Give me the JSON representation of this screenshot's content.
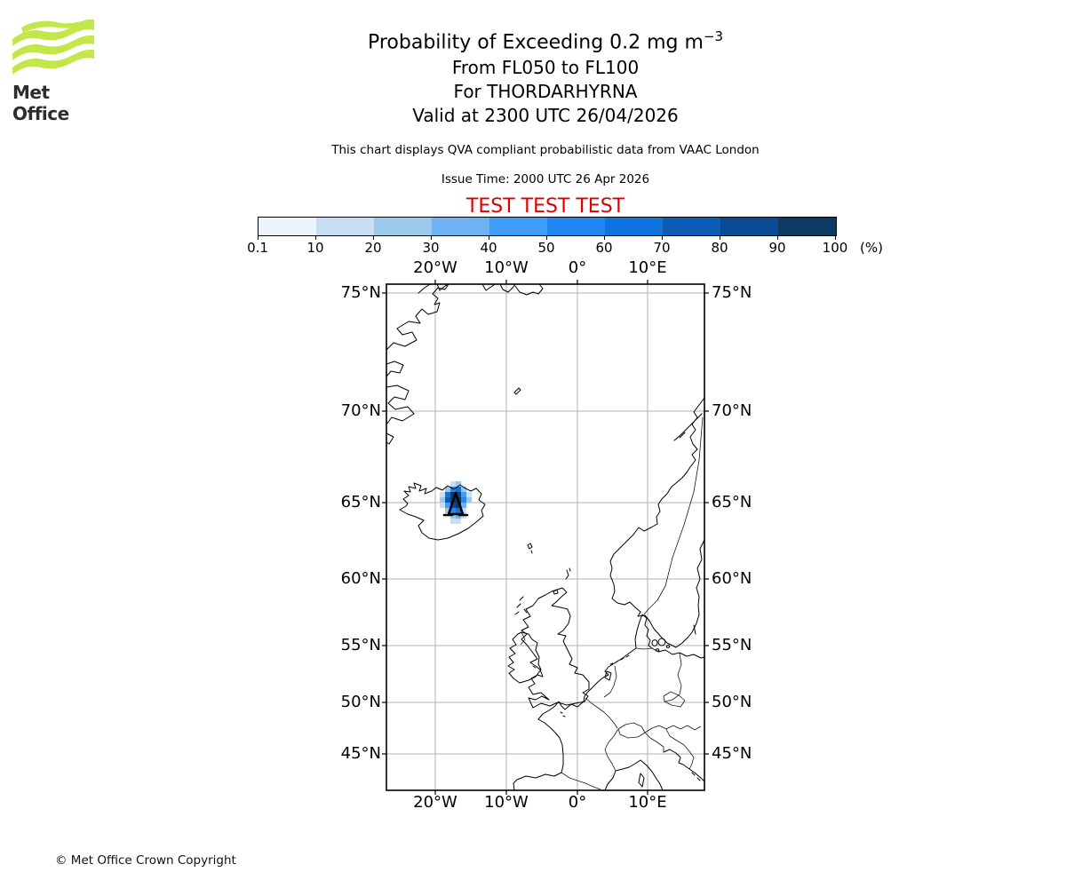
{
  "header": {
    "logo_text": "Met Office",
    "title_main": "Probability of Exceeding 0.2 mg m",
    "title_exponent": "−3",
    "subtitle_flight_levels": "From FL050 to FL100",
    "subtitle_volcano": "For THORDARHYRNA",
    "subtitle_valid": "Valid at 2300 UTC 26/04/2026",
    "description": "This chart displays QVA compliant probabilistic data from VAAC London",
    "issue_time": "Issue Time: 2000 UTC 26 Apr 2026",
    "test_banner": "TEST TEST TEST",
    "test_color": "#dd0000"
  },
  "colorbar": {
    "tick_labels": [
      "0.1",
      "10",
      "20",
      "30",
      "40",
      "50",
      "60",
      "70",
      "80",
      "90",
      "100"
    ],
    "unit": "(%)",
    "colors": [
      "#ebf3fb",
      "#c9def4",
      "#9cc8ec",
      "#6db3f4",
      "#3f9cf8",
      "#2288f0",
      "#1173dc",
      "#0b5cb4",
      "#0a4a94",
      "#0d3a63"
    ]
  },
  "map_axes": {
    "lon_labels": [
      "20°W",
      "10°W",
      "0°",
      "10°E"
    ],
    "lat_labels": [
      "75°N",
      "70°N",
      "65°N",
      "60°N",
      "55°N",
      "50°N",
      "45°N"
    ]
  },
  "footer": {
    "copyright": "© Met Office Crown Copyright"
  },
  "chart_data": {
    "type": "heatmap",
    "title": "Probability of Exceeding 0.2 mg m−3",
    "layer": "From FL050 to FL100",
    "volcano_name": "THORDARHYRNA",
    "valid_time": "2300 UTC 26/04/2026",
    "issue_time": "2000 UTC 26 Apr 2026",
    "source": "VAAC London",
    "legend_bins_percent": [
      0.1,
      10,
      20,
      30,
      40,
      50,
      60,
      70,
      80,
      90,
      100
    ],
    "legend_unit": "%",
    "x_ticks": [
      "20°W",
      "10°W",
      "0°",
      "10°E"
    ],
    "y_ticks": [
      "75°N",
      "70°N",
      "65°N",
      "60°N",
      "55°N",
      "50°N",
      "45°N"
    ],
    "grid": "on",
    "cell_size_px": 6,
    "cells": [
      {
        "x": 72,
        "y": 222,
        "bin": 1
      },
      {
        "x": 78,
        "y": 222,
        "bin": 2
      },
      {
        "x": 66,
        "y": 228,
        "bin": 2
      },
      {
        "x": 72,
        "y": 228,
        "bin": 5
      },
      {
        "x": 78,
        "y": 228,
        "bin": 6
      },
      {
        "x": 84,
        "y": 228,
        "bin": 2
      },
      {
        "x": 60,
        "y": 234,
        "bin": 1
      },
      {
        "x": 66,
        "y": 234,
        "bin": 6
      },
      {
        "x": 72,
        "y": 234,
        "bin": 9
      },
      {
        "x": 78,
        "y": 234,
        "bin": 8
      },
      {
        "x": 84,
        "y": 234,
        "bin": 4
      },
      {
        "x": 90,
        "y": 234,
        "bin": 1
      },
      {
        "x": 60,
        "y": 240,
        "bin": 2
      },
      {
        "x": 66,
        "y": 240,
        "bin": 7
      },
      {
        "x": 72,
        "y": 240,
        "bin": 9
      },
      {
        "x": 78,
        "y": 240,
        "bin": 9
      },
      {
        "x": 84,
        "y": 240,
        "bin": 5
      },
      {
        "x": 90,
        "y": 240,
        "bin": 2
      },
      {
        "x": 60,
        "y": 246,
        "bin": 1
      },
      {
        "x": 66,
        "y": 246,
        "bin": 4
      },
      {
        "x": 72,
        "y": 246,
        "bin": 8
      },
      {
        "x": 78,
        "y": 246,
        "bin": 9
      },
      {
        "x": 84,
        "y": 246,
        "bin": 3
      },
      {
        "x": 66,
        "y": 252,
        "bin": 2
      },
      {
        "x": 72,
        "y": 252,
        "bin": 5
      },
      {
        "x": 78,
        "y": 252,
        "bin": 6
      },
      {
        "x": 84,
        "y": 252,
        "bin": 1
      },
      {
        "x": 72,
        "y": 258,
        "bin": 2
      },
      {
        "x": 78,
        "y": 258,
        "bin": 3
      },
      {
        "x": 84,
        "y": 258,
        "bin": 1
      },
      {
        "x": 72,
        "y": 264,
        "bin": 1
      },
      {
        "x": 78,
        "y": 264,
        "bin": 1
      }
    ],
    "volcano_marker": {
      "x": 78,
      "y": 250,
      "symbol": "volcano-triangle"
    }
  }
}
